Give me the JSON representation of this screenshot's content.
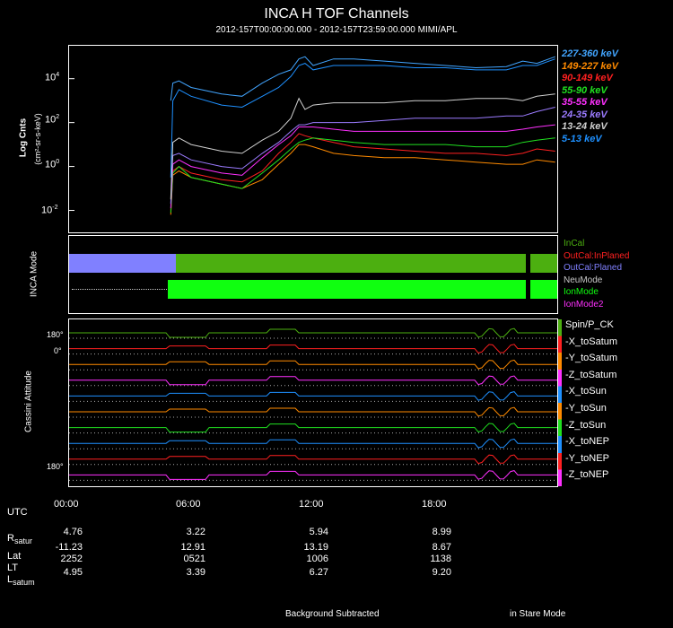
{
  "header": {
    "title": "INCA H TOF Channels",
    "subtitle": "2012-157T00:00:00.000 - 2012-157T23:59:00.000 MIMI/APL"
  },
  "flux_panel": {
    "ylabel": "Log Cnts",
    "yunit": "(cm²-sr-s-keV)",
    "ticks": [
      {
        "base": "10",
        "exp": "4"
      },
      {
        "base": "10",
        "exp": "2"
      },
      {
        "base": "10",
        "exp": "0"
      },
      {
        "base": "10",
        "exp": "-2"
      }
    ]
  },
  "chart_data": {
    "type": "line",
    "title": "INCA H TOF Channels",
    "xlabel": "UTC",
    "ylabel": "Log Cnts (cm2-sr-s-keV)",
    "xlim_hours": [
      0,
      24
    ],
    "ylim_log10": [
      -3,
      5.5
    ],
    "x_hours": [
      5,
      5.1,
      5.4,
      6,
      7.5,
      8.5,
      9.5,
      10.3,
      10.9,
      11.3,
      11.6,
      12,
      13,
      14,
      15.5,
      17,
      18.5,
      20,
      21.5,
      22.3,
      23,
      23.9
    ],
    "series": [
      {
        "name": "227-360 keV",
        "color": "#42a5ff",
        "values": [
          3.0,
          3.8,
          3.9,
          3.6,
          3.3,
          3.2,
          3.8,
          4.2,
          4.4,
          4.9,
          5.0,
          4.6,
          4.9,
          4.9,
          4.8,
          4.7,
          4.6,
          4.5,
          4.55,
          4.8,
          4.7,
          5.0
        ]
      },
      {
        "name": "149-227 keV",
        "color": "#ff8a00",
        "values": [
          -2.2,
          -0.4,
          -0.2,
          -0.5,
          -0.8,
          -1.0,
          -0.6,
          0.1,
          0.6,
          1.0,
          1.0,
          0.9,
          0.6,
          0.5,
          0.4,
          0.4,
          0.3,
          0.2,
          0.1,
          0.1,
          0.3,
          0.2
        ]
      },
      {
        "name": "90-149 keV",
        "color": "#ff2020",
        "values": [
          -2.0,
          -0.2,
          0.0,
          -0.3,
          -0.6,
          -0.7,
          -0.2,
          0.6,
          1.1,
          1.5,
          1.4,
          1.3,
          1.1,
          0.9,
          0.8,
          0.7,
          0.6,
          0.6,
          0.5,
          0.6,
          0.8,
          0.7
        ]
      },
      {
        "name": "55-90 keV",
        "color": "#20e020",
        "values": [
          -2.1,
          -0.3,
          0.0,
          -0.5,
          -0.8,
          -1.0,
          -0.3,
          0.3,
          0.8,
          1.1,
          1.2,
          1.3,
          1.2,
          1.1,
          1.0,
          1.0,
          1.0,
          0.9,
          0.9,
          1.1,
          1.2,
          1.3
        ]
      },
      {
        "name": "35-55 keV",
        "color": "#ff30ff",
        "values": [
          -1.9,
          0.1,
          0.3,
          0.0,
          -0.3,
          -0.4,
          0.4,
          1.0,
          1.4,
          1.8,
          1.8,
          1.8,
          1.7,
          1.6,
          1.6,
          1.6,
          1.6,
          1.6,
          1.6,
          1.7,
          1.8,
          1.9
        ]
      },
      {
        "name": "24-35 keV",
        "color": "#9b7bff",
        "values": [
          -1.7,
          0.5,
          0.6,
          0.3,
          0.0,
          -0.1,
          0.6,
          1.1,
          1.6,
          1.9,
          1.9,
          2.0,
          2.0,
          2.0,
          2.1,
          2.2,
          2.2,
          2.2,
          2.3,
          2.3,
          2.5,
          2.7
        ]
      },
      {
        "name": "13-24 keV",
        "color": "#d0d0d0",
        "values": [
          -1.5,
          1.1,
          1.3,
          1.0,
          0.7,
          0.6,
          1.2,
          1.6,
          2.2,
          3.1,
          2.6,
          2.8,
          2.9,
          2.9,
          2.9,
          3.0,
          3.0,
          3.1,
          3.1,
          3.0,
          3.2,
          3.3
        ]
      },
      {
        "name": "5-13 keV",
        "color": "#1e90ff",
        "values": [
          -0.5,
          3.0,
          3.5,
          3.2,
          2.8,
          2.7,
          3.2,
          3.6,
          4.1,
          4.6,
          4.7,
          4.4,
          4.6,
          4.6,
          4.6,
          4.5,
          4.5,
          4.4,
          4.4,
          4.6,
          4.6,
          4.9
        ]
      }
    ]
  },
  "mode_panel": {
    "ylabel": "INCA Mode",
    "legend": [
      {
        "label": "InCal",
        "color": "#4caf10"
      },
      {
        "label": "OutCal:InPlaned",
        "color": "#ff2020"
      },
      {
        "label": "OutCal:Planed",
        "color": "#8080ff"
      },
      {
        "label": "NeuMode",
        "color": "#c8c8c8"
      },
      {
        "label": "IonMode",
        "color": "#10ff10"
      },
      {
        "label": "IonMode2",
        "color": "#ff30ff"
      }
    ]
  },
  "attitude_panel": {
    "ylabel": "Cassini Attitude",
    "tick_top": "180°",
    "tick_zero": "0°",
    "tick_bottom": "180°",
    "labels": [
      {
        "label": "Spin/P_CK",
        "color": "#4caf10"
      },
      {
        "label": "-X_toSatum",
        "color": "#ff2020"
      },
      {
        "label": "-Y_toSatum",
        "color": "#ff8a00"
      },
      {
        "label": "-Z_toSatum",
        "color": "#ff30ff"
      },
      {
        "label": "-X_toSun",
        "color": "#1e90ff"
      },
      {
        "label": "-Y_toSun",
        "color": "#ff8a00"
      },
      {
        "label": "-Z_toSun",
        "color": "#20e020"
      },
      {
        "label": "-X_toNEP",
        "color": "#1e90ff"
      },
      {
        "label": "-Y_toNEP",
        "color": "#ff2020"
      },
      {
        "label": "-Z_toNEP",
        "color": "#ff30ff"
      }
    ]
  },
  "time_axis": {
    "label": "UTC",
    "ticks": [
      "00:00",
      "06:00",
      "12:00",
      "18:00"
    ]
  },
  "ephemeris": {
    "r_label": "R",
    "r_sub": "satur",
    "lat_label": "Lat",
    "lt_label": "LT",
    "l_label": "L",
    "l_sub": "satum",
    "columns": [
      {
        "r": "4.76",
        "lat": "-11.23",
        "lt": "2252",
        "l": "4.95"
      },
      {
        "r": "3.22",
        "lat": "12.91",
        "lt": "0521",
        "l": "3.39"
      },
      {
        "r": "5.94",
        "lat": "13.19",
        "lt": "1006",
        "l": "6.27"
      },
      {
        "r": "8.99",
        "lat": "8.67",
        "lt": "1138",
        "l": "9.20"
      }
    ]
  },
  "footer": {
    "left": "Background Subtracted",
    "right": "in Stare Mode"
  }
}
